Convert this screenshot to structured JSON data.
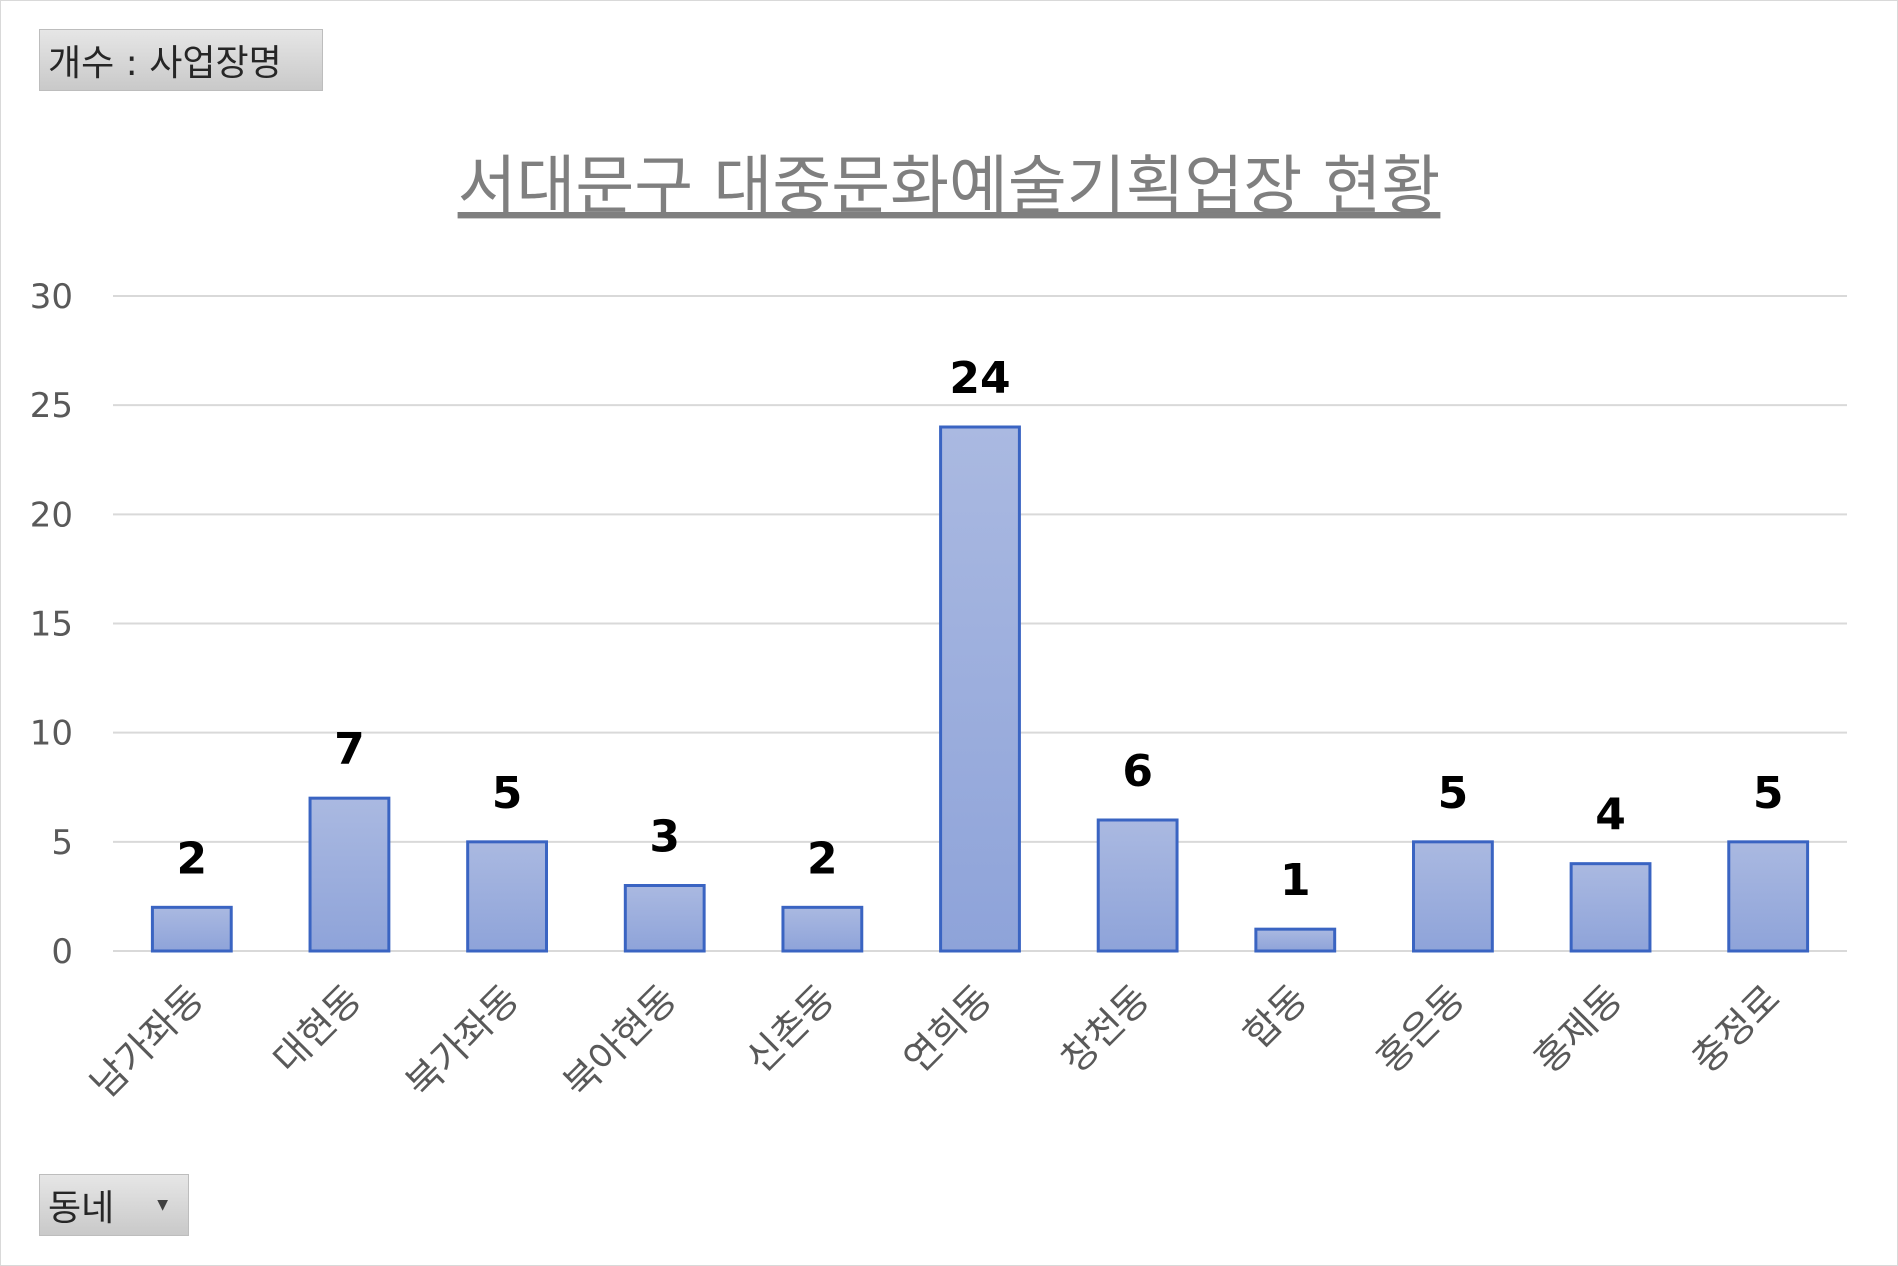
{
  "value_field_label": "개수 : 사업장명",
  "axis_field_label": "동네",
  "colors": {
    "bar_fill_top": "#aab9e1",
    "bar_fill_bottom": "#8ea3d9",
    "bar_stroke": "#3a64c2",
    "grid": "#d9d9d9",
    "tick_text": "#595959",
    "title_text": "#7f7f7f"
  },
  "chart_data": {
    "type": "bar",
    "title": "서대문구 대중문화예술기획업장 현황",
    "categories": [
      "남가좌동",
      "대현동",
      "북가좌동",
      "북아현동",
      "신촌동",
      "연희동",
      "창천동",
      "합동",
      "홍은동",
      "홍제동",
      "충정로"
    ],
    "values": [
      2,
      7,
      5,
      3,
      2,
      24,
      6,
      1,
      5,
      4,
      5
    ],
    "ylim": [
      0,
      30
    ],
    "yticks": [
      0,
      5,
      10,
      15,
      20,
      25,
      30
    ],
    "grid": true,
    "legend": "none",
    "data_labels": true
  }
}
